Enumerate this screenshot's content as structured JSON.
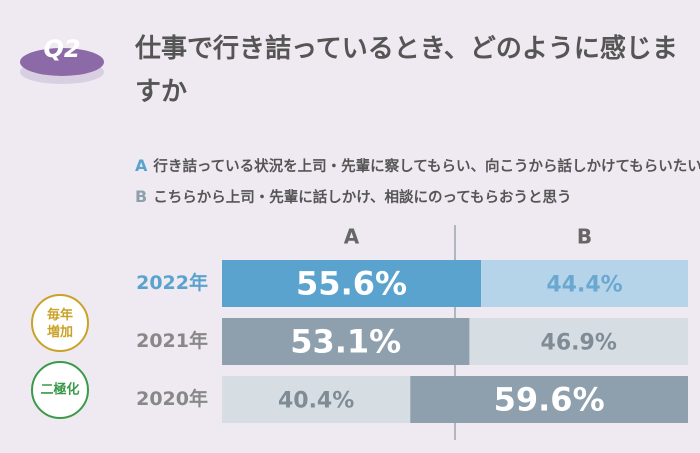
{
  "badge": "Q2",
  "chart_data": {
    "type": "stacked_bar_100",
    "title": "仕事で行き詰っているとき、どのように感じますか",
    "categories": [
      "2022年",
      "2021年",
      "2020年"
    ],
    "category_color": [
      "#5ba3cf",
      "#888888",
      "#888888"
    ],
    "xlim": [
      0,
      100
    ],
    "series": [
      {
        "name": "A",
        "key_color": "#5ba3cf",
        "description": "行き詰っている状況を上司・先輩に察してもらい、向こうから話しかけてもらいたい",
        "values": [
          55.6,
          53.1,
          40.4
        ],
        "value_labels": [
          "55.6%",
          "53.1%",
          "40.4%"
        ],
        "colors": [
          "#5ba3cf",
          "#8e9fad",
          "#d6dee3"
        ],
        "label_colors": [
          "#ffffff",
          "#ffffff",
          "#7f8c96"
        ]
      },
      {
        "name": "B",
        "key_color": "#8e9fad",
        "description": "こちらから上司・先輩に話しかけ、相談にのってもらおうと思う",
        "values": [
          44.4,
          46.9,
          59.6
        ],
        "value_labels": [
          "44.4%",
          "46.9%",
          "59.6%"
        ],
        "colors": [
          "#b6d4e9",
          "#d6dee3",
          "#8e9fad"
        ],
        "label_colors": [
          "#6aa8d2",
          "#7f8c96",
          "#ffffff"
        ]
      }
    ],
    "annotations": [
      {
        "text": "毎年増加",
        "color": "#c9a227"
      },
      {
        "text": "二極化",
        "color": "#3a9a4a"
      }
    ]
  }
}
